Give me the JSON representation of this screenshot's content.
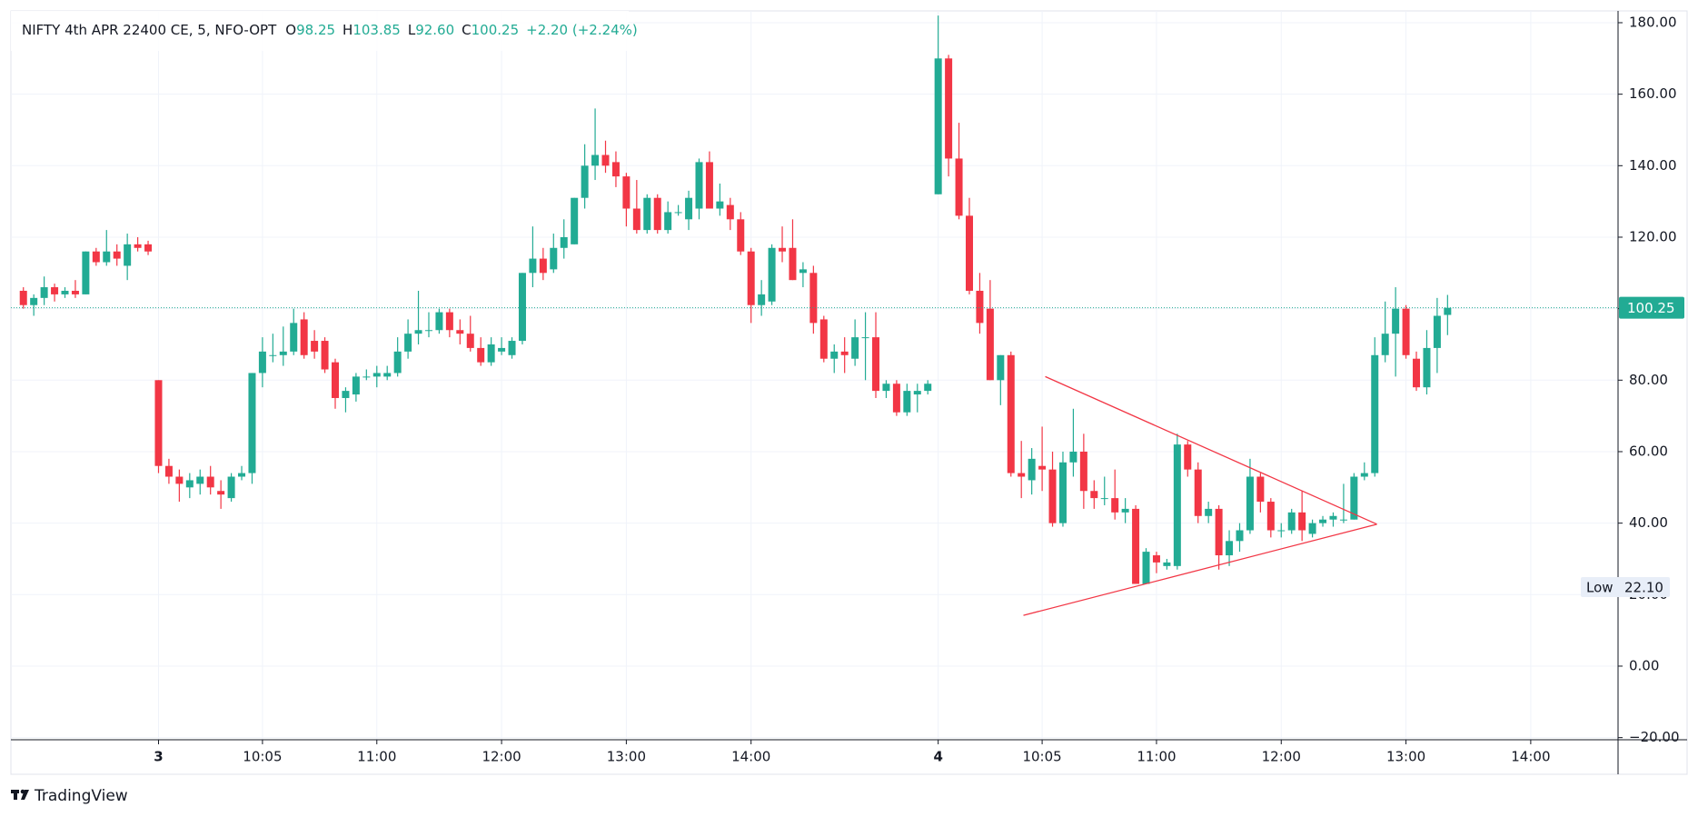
{
  "chart_data": {
    "type": "candlestick",
    "title": "NIFTY 4th APR 22400 CE, 5, NFO-OPT",
    "legend": [
      {
        "label": "O",
        "value": "98.25"
      },
      {
        "label": "H",
        "value": "103.85"
      },
      {
        "label": "L",
        "value": "92.60"
      },
      {
        "label": "C",
        "value": "100.25"
      }
    ],
    "change": "+2.20 (+2.24%)",
    "up_color": "#22ab94",
    "down_color": "#f23645",
    "open": [
      105,
      101,
      103,
      106,
      104,
      105,
      104,
      116,
      113,
      116,
      112,
      118,
      118,
      80,
      56,
      53,
      50,
      51,
      53,
      49,
      47,
      53,
      54,
      82,
      87,
      87,
      88,
      97,
      91,
      91,
      85,
      75,
      76,
      81,
      81,
      81,
      82,
      88,
      93,
      94,
      94,
      99,
      94,
      93,
      89,
      85,
      88,
      87,
      91,
      110,
      114,
      111,
      117,
      118,
      131,
      140,
      143,
      141,
      137,
      128,
      122,
      131,
      122,
      127,
      125,
      128,
      141,
      128,
      129,
      125,
      116,
      101,
      102,
      117,
      117,
      110,
      110,
      97,
      86,
      88,
      86,
      92,
      92,
      77,
      79,
      71,
      76,
      77,
      132,
      170,
      142,
      126,
      105,
      100,
      80,
      87,
      54,
      52,
      56,
      55,
      40,
      57,
      60,
      49,
      47,
      47,
      43,
      44,
      23,
      31,
      28,
      28,
      62,
      55,
      42,
      44,
      31,
      35,
      38,
      53,
      46,
      38,
      38,
      43,
      37,
      40,
      41,
      41,
      41,
      53,
      54,
      87,
      93,
      100,
      86,
      78,
      89,
      98.25
    ],
    "high": [
      106,
      104,
      109,
      107,
      106,
      108,
      116,
      117,
      122,
      118,
      121,
      120,
      119,
      80,
      58,
      55,
      54,
      55,
      56,
      52,
      54,
      56,
      82,
      92,
      93,
      95,
      100,
      99,
      94,
      92,
      86,
      78,
      82,
      83,
      84,
      84,
      92,
      97,
      105,
      99,
      100,
      100,
      97,
      98,
      92,
      92,
      92,
      92,
      110,
      123,
      117,
      121,
      125,
      131,
      146,
      156,
      147,
      144,
      138,
      136,
      132,
      132,
      130,
      129,
      133,
      142,
      144,
      135,
      131,
      127,
      117,
      108,
      118,
      123,
      125,
      113,
      112,
      98,
      90,
      92,
      97,
      99,
      99,
      80,
      80,
      79,
      79,
      80,
      182,
      171,
      152,
      131,
      110,
      108,
      87,
      88,
      63,
      61,
      67,
      60,
      60,
      72,
      65,
      52,
      53,
      55,
      47,
      45,
      33,
      32,
      30,
      65,
      63,
      57,
      46,
      45,
      38,
      40,
      58,
      54,
      47,
      40,
      44,
      49,
      41,
      42,
      43,
      51,
      54,
      57,
      92,
      102,
      106,
      101,
      88,
      94,
      103,
      103.85
    ],
    "low": [
      100,
      98,
      101,
      102,
      103,
      103,
      104,
      112,
      112,
      112,
      108,
      116,
      115,
      54,
      51,
      46,
      47,
      48,
      48,
      44,
      46,
      52,
      51,
      78,
      85,
      84,
      87,
      86,
      86,
      82,
      72,
      71,
      74,
      80,
      78,
      80,
      81,
      86,
      90,
      92,
      93,
      92,
      90,
      88,
      84,
      84,
      87,
      86,
      90,
      106,
      108,
      110,
      114,
      118,
      128,
      136,
      138,
      134,
      123,
      121,
      121,
      121,
      121,
      126,
      122,
      125,
      130,
      126,
      122,
      115,
      96,
      98,
      101,
      113,
      108,
      106,
      93,
      85,
      82,
      82,
      84,
      80,
      75,
      75,
      70,
      70,
      71,
      76,
      132,
      137,
      125,
      104,
      93,
      80,
      73,
      53,
      47,
      48,
      49,
      39,
      39,
      53,
      44,
      44,
      45,
      41,
      40,
      23,
      23,
      26,
      27,
      27,
      53,
      40,
      40,
      27,
      28,
      32,
      37,
      43,
      36,
      36,
      37,
      35,
      36,
      39,
      39,
      40,
      41,
      52,
      53,
      85,
      81,
      86,
      77,
      76,
      82,
      92.6
    ],
    "close": [
      101,
      103,
      106,
      104,
      105,
      104,
      116,
      113,
      116,
      114,
      118,
      117,
      116,
      56,
      53,
      51,
      52,
      53,
      50,
      48,
      53,
      54,
      82,
      88,
      87,
      88,
      96,
      87,
      88,
      83,
      75,
      77,
      81,
      81,
      82,
      82,
      88,
      93,
      94,
      94,
      99,
      94,
      93,
      89,
      85,
      90,
      89,
      91,
      110,
      114,
      110,
      117,
      120,
      131,
      140,
      143,
      140,
      137,
      128,
      122,
      131,
      122,
      127,
      127,
      131,
      141,
      128,
      130,
      125,
      116,
      101,
      104,
      117,
      116,
      108,
      111,
      96,
      86,
      88,
      87,
      92,
      92,
      77,
      79,
      71,
      77,
      77,
      79,
      170,
      142,
      126,
      105,
      96,
      80,
      87,
      54,
      53,
      58,
      55,
      40,
      57,
      60,
      49,
      47,
      47,
      43,
      44,
      23,
      32,
      29,
      29,
      62,
      55,
      42,
      44,
      31,
      35,
      38,
      53,
      46,
      38,
      38,
      43,
      38,
      40,
      41,
      42,
      41,
      53,
      54,
      87,
      93,
      100,
      87,
      78,
      89,
      98,
      100.25
    ],
    "xlim": [
      -1.2,
      153.4
    ],
    "xticks": [
      {
        "value": 13,
        "label": "3"
      },
      {
        "value": 23,
        "label": "10:05"
      },
      {
        "value": 34,
        "label": "11:00"
      },
      {
        "value": 46,
        "label": "12:00"
      },
      {
        "value": 58,
        "label": "13:00"
      },
      {
        "value": 70,
        "label": "14:00"
      },
      {
        "value": 88,
        "label": "4"
      },
      {
        "value": 98,
        "label": "10:05"
      },
      {
        "value": 109,
        "label": "11:00"
      },
      {
        "value": 121,
        "label": "12:00"
      },
      {
        "value": 133,
        "label": "13:00"
      },
      {
        "value": 145,
        "label": "14:00"
      }
    ],
    "ylim": [
      -20.6,
      183.3
    ],
    "yticks": [
      {
        "value": -20,
        "label": "−20.00"
      },
      {
        "value": 0,
        "label": "0.00"
      },
      {
        "value": 20,
        "label": "20.00"
      },
      {
        "value": 40,
        "label": "40.00"
      },
      {
        "value": 60,
        "label": "60.00"
      },
      {
        "value": 80,
        "label": "80.00"
      },
      {
        "value": 100,
        "label": "100.00"
      },
      {
        "value": 120,
        "label": "120.00"
      },
      {
        "value": 140,
        "label": "140.00"
      },
      {
        "value": 160,
        "label": "160.00"
      },
      {
        "value": 180,
        "label": "180.00"
      }
    ],
    "grid": true,
    "last_price": 100.25,
    "low_marker": {
      "label": "Low",
      "value": 22.1,
      "value_label": "22.10"
    },
    "trendlines": [
      {
        "x": [
          98.3,
          130.2
        ],
        "y": [
          81,
          39.7
        ]
      },
      {
        "x": [
          96.2,
          130.2
        ],
        "y": [
          14.2,
          39.7
        ]
      }
    ],
    "trendline_color": "#f23645"
  },
  "footer": {
    "brand": "TradingView"
  }
}
